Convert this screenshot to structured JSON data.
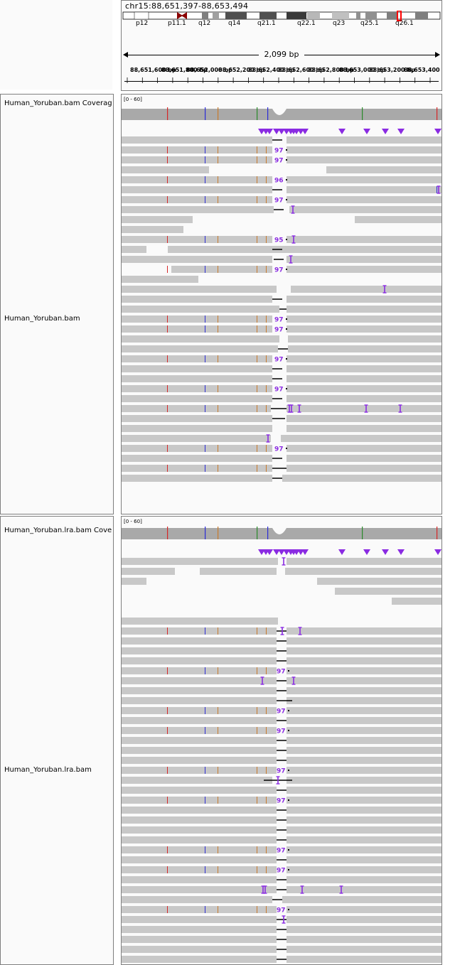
{
  "locus": "chr15:88,651,397-88,653,494",
  "cytobands": [
    "p12",
    "p11.1",
    "q12",
    "q14",
    "q21.1",
    "q22.1",
    "q23",
    "q25.1",
    "q26.1"
  ],
  "span": "2,099 bp",
  "ruler_labels": [
    "88,651,600 bp",
    "88,651,800 bp",
    "88,652,000 bp",
    "88,652,200 bp",
    "88,652,400 bp",
    "88,652,600 bp",
    "88,652,800 bp",
    "88,653,000 bp",
    "88,653,200 bp",
    "88,653,400"
  ],
  "tracks": [
    {
      "coverage_name": "Human_Yoruban.bam Coverage",
      "alignment_name": "Human_Yoruban.bam",
      "range": "[0 - 60]"
    },
    {
      "coverage_name": "Human_Yoruban.lra.bam Coverage",
      "alignment_name": "Human_Yoruban.lra.bam",
      "range": "[0 - 60]"
    }
  ],
  "insertion_labels": {
    "track1": [
      "97",
      "97",
      "96",
      "97",
      "95",
      "97",
      "97",
      "97",
      "97",
      "97",
      "97"
    ],
    "track2": [
      "97",
      "97",
      "97",
      "97",
      "97",
      "97",
      "97",
      "97",
      "97"
    ]
  },
  "colors": {
    "read": "#c8c8c8",
    "coverage": "#a9a9a9",
    "insertion": "#8a2be2",
    "triangle": "#8a2be2",
    "centromere": "#8b0000",
    "highlight": "#ff0000"
  }
}
